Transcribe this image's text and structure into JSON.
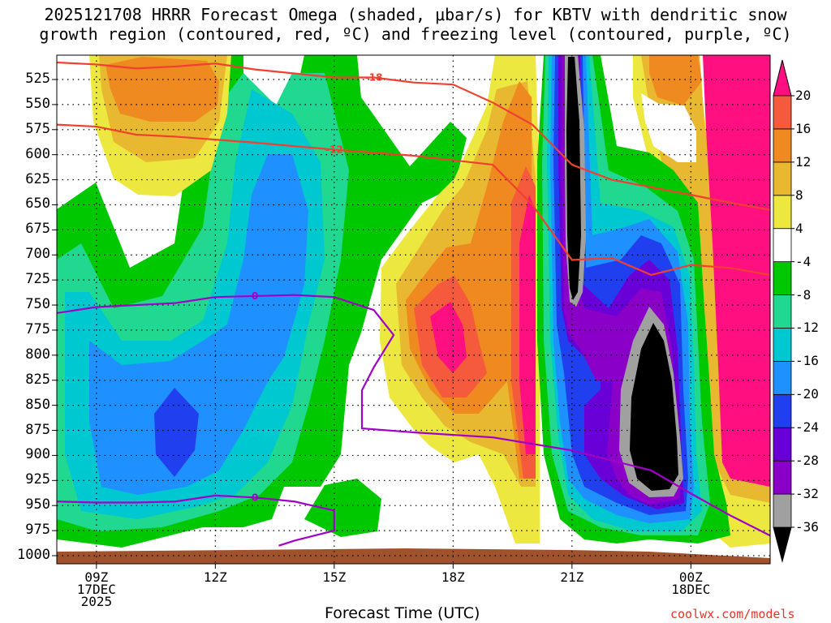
{
  "title": {
    "line1": "2025121708 HRRR Forecast Omega (shaded, μbar/s) for KBTV with dendritic snow",
    "line2": "growth region (contoured, red, ºC) and freezing level (contoured, purple, ºC)"
  },
  "x_axis_title": "Forecast Time (UTC)",
  "credit": "coolwx.com/models",
  "colors": {
    "shade_levels": [
      "#000000",
      "#a0a0a0",
      "#8b00c9",
      "#6a00d8",
      "#2040f0",
      "#1e90ff",
      "#00c8d0",
      "#20d890",
      "#00c800",
      "#ffffff",
      "#ece840",
      "#e8b830",
      "#ee8a20",
      "#f55a3c",
      "#ff0f80"
    ],
    "dgz_contour": "#f04030",
    "freezing_contour": "#a000c8",
    "ground": "#a0522d"
  },
  "chart_data": {
    "type": "heatmap",
    "title": "2025121708 HRRR Forecast Omega (shaded, μbar/s) for KBTV with dendritic snow growth region (contoured, red, ºC) and freezing level (contoured, purple, ºC)",
    "xlabel": "Forecast Time (UTC)",
    "ylabel": "",
    "x_ticks": [
      {
        "label": [
          "09Z",
          "17DEC",
          "2025"
        ],
        "hour": 9
      },
      {
        "label": [
          "12Z"
        ],
        "hour": 12
      },
      {
        "label": [
          "15Z"
        ],
        "hour": 15
      },
      {
        "label": [
          "18Z"
        ],
        "hour": 18
      },
      {
        "label": [
          "21Z"
        ],
        "hour": 21
      },
      {
        "label": [
          "00Z",
          "18DEC"
        ],
        "hour": 24
      }
    ],
    "x_range_hours": [
      8,
      26
    ],
    "y_ticks_hpa": [
      525,
      550,
      575,
      600,
      625,
      650,
      675,
      700,
      725,
      750,
      775,
      800,
      825,
      850,
      875,
      900,
      925,
      950,
      975,
      1000
    ],
    "colorbar": {
      "labels": [
        "20",
        "16",
        "12",
        "8",
        "4",
        "-4",
        "-8",
        "-12",
        "-16",
        "-20",
        "-24",
        "-28",
        "-32",
        "-36"
      ]
    },
    "contours": [
      {
        "label": "-18",
        "color": "red",
        "points": [
          [
            8,
            508
          ],
          [
            9,
            510
          ],
          [
            10,
            514
          ],
          [
            11,
            512
          ],
          [
            12,
            509
          ],
          [
            13,
            515
          ],
          [
            15,
            523
          ],
          [
            16,
            523
          ],
          [
            17,
            528
          ],
          [
            18,
            530
          ],
          [
            19,
            548
          ],
          [
            20,
            570
          ],
          [
            21,
            610
          ],
          [
            22,
            625
          ],
          [
            24,
            640
          ],
          [
            25,
            648
          ],
          [
            26,
            655
          ]
        ]
      },
      {
        "label": "-12",
        "color": "red",
        "points": [
          [
            8,
            570
          ],
          [
            9,
            572
          ],
          [
            10,
            580
          ],
          [
            11,
            582
          ],
          [
            12,
            585
          ],
          [
            13,
            588
          ],
          [
            15,
            595
          ],
          [
            17,
            601
          ],
          [
            19,
            610
          ],
          [
            20,
            650
          ],
          [
            21,
            705
          ],
          [
            22,
            703
          ],
          [
            23,
            720
          ],
          [
            24,
            710
          ],
          [
            25,
            713
          ],
          [
            26,
            720
          ]
        ]
      },
      {
        "label": "0",
        "color": "purple",
        "points": [
          [
            8,
            758
          ],
          [
            9,
            752
          ],
          [
            10,
            750
          ],
          [
            11,
            748
          ],
          [
            12,
            742
          ],
          [
            13,
            741
          ],
          [
            14,
            740
          ],
          [
            15,
            742
          ],
          [
            16,
            755
          ],
          [
            16.5,
            780
          ],
          [
            16,
            812
          ],
          [
            15.7,
            835
          ],
          [
            15.7,
            873
          ],
          [
            17,
            877
          ],
          [
            19,
            882
          ],
          [
            21,
            895
          ],
          [
            23,
            915
          ],
          [
            24,
            938
          ],
          [
            25,
            960
          ],
          [
            26,
            980
          ]
        ]
      },
      {
        "label": "0",
        "color": "purple",
        "points": [
          [
            8,
            946
          ],
          [
            9,
            947
          ],
          [
            10,
            947
          ],
          [
            11,
            946
          ],
          [
            12,
            940
          ],
          [
            13,
            942
          ],
          [
            14,
            946
          ],
          [
            15,
            955
          ],
          [
            15,
            975
          ],
          [
            14,
            985
          ],
          [
            13.6,
            990
          ]
        ]
      }
    ]
  }
}
